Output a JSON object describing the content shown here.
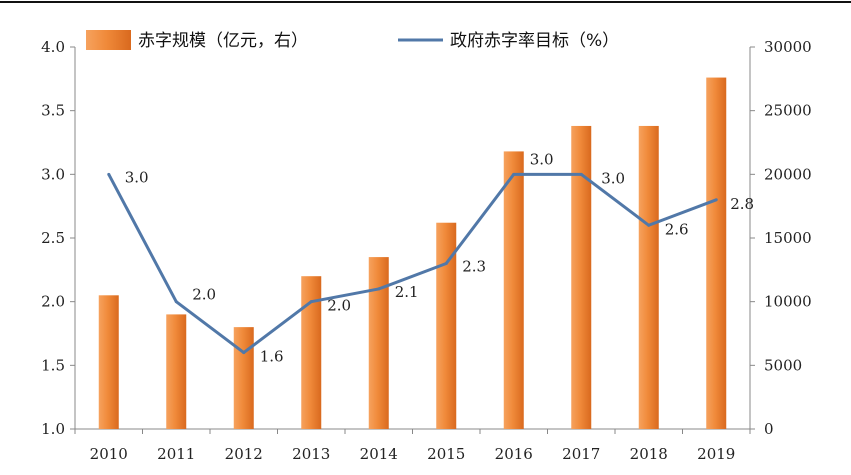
{
  "chart_data": {
    "type": "bar+line",
    "categories": [
      "2010",
      "2011",
      "2012",
      "2013",
      "2014",
      "2015",
      "2016",
      "2017",
      "2018",
      "2019"
    ],
    "series": [
      {
        "name": "赤字规模（亿元，右）",
        "type": "bar",
        "axis": "right",
        "color": "#EE8433",
        "values": [
          10500,
          9000,
          8000,
          12000,
          13500,
          16200,
          21800,
          23800,
          23800,
          27600
        ]
      },
      {
        "name": "政府赤字率目标（%）",
        "type": "line",
        "axis": "left",
        "color": "#5178A8",
        "values": [
          3.0,
          2.0,
          1.6,
          2.0,
          2.1,
          2.3,
          3.0,
          3.0,
          2.6,
          2.8
        ],
        "labels": [
          "3.0",
          "2.0",
          "1.6",
          "2.0",
          "2.1",
          "2.3",
          "3.0",
          "3.0",
          "2.6",
          "2.8"
        ]
      }
    ],
    "left_axis": {
      "ylim": [
        1.0,
        4.0
      ],
      "ticks": [
        "1.0",
        "1.5",
        "2.0",
        "2.5",
        "3.0",
        "3.5",
        "4.0"
      ]
    },
    "right_axis": {
      "ylim": [
        0,
        30000
      ],
      "ticks": [
        "0",
        "5000",
        "10000",
        "15000",
        "20000",
        "25000",
        "30000"
      ]
    },
    "legend_position": "top",
    "grid": false
  }
}
